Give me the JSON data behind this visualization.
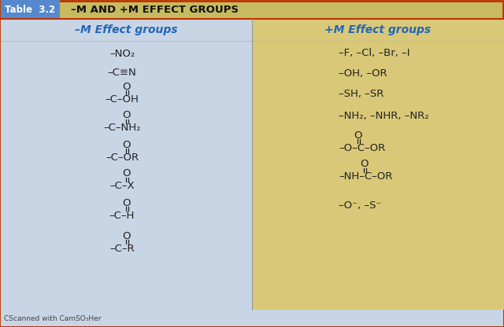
{
  "title": "–M AND +M EFFECT GROUPS",
  "table_label": "Table  3.2",
  "left_header": "–M Effect groups",
  "right_header": "+M Effect groups",
  "left_bg": "#c8d5e5",
  "right_bg": "#d8c878",
  "title_bg": "#c8ba60",
  "table_border": "#bb3300",
  "label_bg": "#5588cc",
  "label_text": "white",
  "text_color": "#222222",
  "header_color": "#2266bb",
  "footer_text": "CScanned with CamSO₃Her",
  "fig_width": 6.4,
  "fig_height": 4.16,
  "dpi": 100
}
